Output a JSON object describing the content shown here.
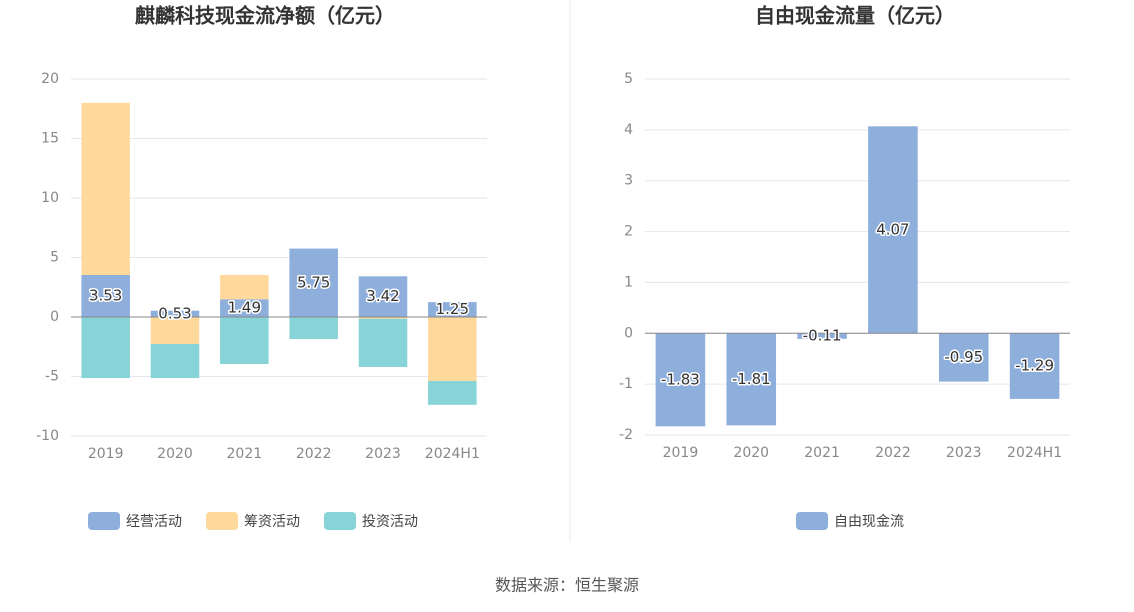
{
  "chart_data": [
    {
      "type": "bar",
      "stacked": true,
      "title": "麒麟科技现金流净额（亿元）",
      "categories": [
        "2019",
        "2020",
        "2021",
        "2022",
        "2023",
        "2024H1"
      ],
      "series": [
        {
          "name": "经营活动",
          "color": "#8eaedc",
          "show_labels": true,
          "values": [
            3.53,
            0.53,
            1.49,
            5.75,
            3.42,
            1.25
          ]
        },
        {
          "name": "筹资活动",
          "color": "#fed99b",
          "show_labels": false,
          "values": [
            14.47,
            -2.27,
            2.04,
            0,
            -0.15,
            -5.38
          ]
        },
        {
          "name": "投资活动",
          "color": "#87d4d8",
          "show_labels": false,
          "values": [
            -5.13,
            -2.86,
            -3.95,
            -1.85,
            -4.05,
            -2.0
          ]
        }
      ],
      "ylim": [
        -10,
        20
      ],
      "yticks": [
        -10,
        -5,
        0,
        5,
        10,
        15,
        20
      ],
      "grid": true
    },
    {
      "type": "bar",
      "stacked": false,
      "title": "自由现金流量（亿元）",
      "categories": [
        "2019",
        "2020",
        "2021",
        "2022",
        "2023",
        "2024H1"
      ],
      "series": [
        {
          "name": "自由现金流",
          "color": "#8eaedc",
          "show_labels": true,
          "values": [
            -1.83,
            -1.81,
            -0.11,
            4.07,
            -0.95,
            -1.29
          ]
        }
      ],
      "ylim": [
        -2,
        5
      ],
      "yticks": [
        -2,
        -1,
        0,
        1,
        2,
        3,
        4,
        5
      ],
      "grid": true
    }
  ],
  "source": "数据来源：恒生聚源"
}
